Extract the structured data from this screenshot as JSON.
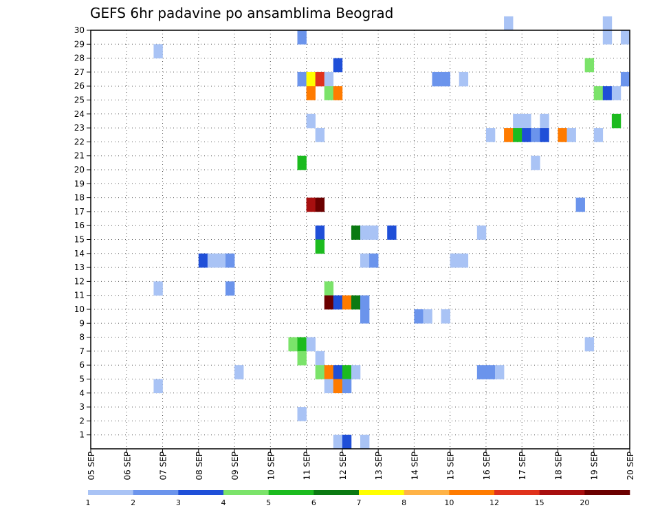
{
  "chart_data": {
    "type": "heatmap",
    "title": "GEFS 6hr padavine po ansamblima Beograd",
    "xlabel": "",
    "ylabel": "",
    "x_tick_labels": [
      "05 SEP",
      "06 SEP",
      "07 SEP",
      "08 SEP",
      "09 SEP",
      "10 SEP",
      "11 SEP",
      "12 SEP",
      "13 SEP",
      "14 SEP",
      "15 SEP",
      "16 SEP",
      "17 SEP",
      "18 SEP",
      "19 SEP",
      "20 SEP"
    ],
    "xlim": [
      0,
      60
    ],
    "y_tick_labels": [
      "1",
      "2",
      "3",
      "4",
      "5",
      "6",
      "7",
      "8",
      "9",
      "10",
      "11",
      "12",
      "13",
      "14",
      "15",
      "16",
      "17",
      "18",
      "19",
      "20",
      "21",
      "22",
      "23",
      "24",
      "25",
      "26",
      "27",
      "28",
      "29",
      "30"
    ],
    "ylim": [
      0,
      30
    ],
    "grid": true,
    "legend": {
      "placement": "bottom",
      "labels": [
        "1",
        "2",
        "3",
        "4",
        "5",
        "6",
        "7",
        "8",
        "10",
        "12",
        "15",
        "20"
      ],
      "colors": [
        "#a9c3f5",
        "#6b94ec",
        "#1f4fd8",
        "#7be36a",
        "#1cbb1f",
        "#0b7a12",
        "#ffff00",
        "#ffb347",
        "#ff7b00",
        "#e0321c",
        "#a80f0f",
        "#6b0000"
      ]
    },
    "cells": [
      [
        46,
        30,
        1
      ],
      [
        57,
        30,
        1
      ],
      [
        59,
        29,
        1
      ],
      [
        57,
        29,
        1
      ],
      [
        23,
        29,
        2
      ],
      [
        7,
        28,
        1
      ],
      [
        27,
        27,
        3
      ],
      [
        55,
        27,
        4
      ],
      [
        23,
        26,
        2
      ],
      [
        24,
        26,
        7
      ],
      [
        25,
        26,
        10
      ],
      [
        26,
        26,
        1
      ],
      [
        38,
        26,
        2
      ],
      [
        39,
        26,
        2
      ],
      [
        41,
        26,
        1
      ],
      [
        59,
        26,
        2
      ],
      [
        24,
        25,
        9
      ],
      [
        26,
        25,
        4
      ],
      [
        27,
        25,
        9
      ],
      [
        56,
        25,
        4
      ],
      [
        57,
        25,
        3
      ],
      [
        58,
        25,
        1
      ],
      [
        24,
        23,
        1
      ],
      [
        47,
        23,
        1
      ],
      [
        48,
        23,
        1
      ],
      [
        50,
        23,
        1
      ],
      [
        58,
        23,
        5
      ],
      [
        25,
        22,
        1
      ],
      [
        44,
        22,
        1
      ],
      [
        46,
        22,
        9
      ],
      [
        47,
        22,
        5
      ],
      [
        48,
        22,
        3
      ],
      [
        49,
        22,
        2
      ],
      [
        50,
        22,
        3
      ],
      [
        52,
        22,
        9
      ],
      [
        53,
        22,
        1
      ],
      [
        56,
        22,
        1
      ],
      [
        23,
        20,
        5
      ],
      [
        49,
        20,
        1
      ],
      [
        24,
        17,
        11
      ],
      [
        25,
        17,
        12
      ],
      [
        54,
        17,
        2
      ],
      [
        25,
        15,
        3
      ],
      [
        29,
        15,
        6
      ],
      [
        30,
        15,
        1
      ],
      [
        31,
        15,
        1
      ],
      [
        33,
        15,
        3
      ],
      [
        43,
        15,
        1
      ],
      [
        25,
        14,
        5
      ],
      [
        12,
        13,
        3
      ],
      [
        13,
        13,
        1
      ],
      [
        14,
        13,
        1
      ],
      [
        15,
        13,
        2
      ],
      [
        30,
        13,
        1
      ],
      [
        31,
        13,
        2
      ],
      [
        40,
        13,
        1
      ],
      [
        41,
        13,
        1
      ],
      [
        7,
        11,
        1
      ],
      [
        15,
        11,
        2
      ],
      [
        26,
        11,
        4
      ],
      [
        26,
        10,
        12
      ],
      [
        27,
        10,
        3
      ],
      [
        28,
        10,
        9
      ],
      [
        29,
        10,
        6
      ],
      [
        30,
        10,
        2
      ],
      [
        30,
        9,
        2
      ],
      [
        36,
        9,
        2
      ],
      [
        37,
        9,
        1
      ],
      [
        39,
        9,
        1
      ],
      [
        22,
        7,
        4
      ],
      [
        23,
        7,
        5
      ],
      [
        24,
        7,
        1
      ],
      [
        55,
        7,
        1
      ],
      [
        23,
        6,
        4
      ],
      [
        25,
        6,
        1
      ],
      [
        16,
        5,
        1
      ],
      [
        25,
        5,
        4
      ],
      [
        26,
        5,
        9
      ],
      [
        27,
        5,
        3
      ],
      [
        28,
        5,
        5
      ],
      [
        29,
        5,
        1
      ],
      [
        43,
        5,
        2
      ],
      [
        44,
        5,
        2
      ],
      [
        45,
        5,
        1
      ],
      [
        7,
        4,
        1
      ],
      [
        26,
        4,
        1
      ],
      [
        27,
        4,
        9
      ],
      [
        28,
        4,
        2
      ],
      [
        23,
        2,
        1
      ],
      [
        27,
        0,
        1
      ],
      [
        28,
        0,
        3
      ],
      [
        30,
        0,
        1
      ]
    ]
  }
}
